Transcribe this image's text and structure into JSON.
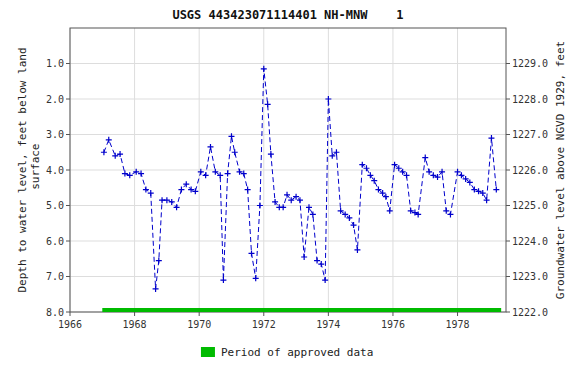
{
  "chart_data": {
    "type": "line",
    "title": "USGS 443423071114401 NH-MNW    1",
    "y_label": "Depth to water level, feet below land\n surface",
    "y2_label": "Groundwater level above NGVD 1929, feet",
    "xlim": [
      1966.0,
      1979.5
    ],
    "xticks": [
      1966,
      1968,
      1970,
      1972,
      1974,
      1976,
      1978
    ],
    "ylim": [
      8.0,
      0.0
    ],
    "yticks": [
      {
        "value": 1.0,
        "label": "1.0"
      },
      {
        "value": 2.0,
        "label": "2.0"
      },
      {
        "value": 3.0,
        "label": "3.0"
      },
      {
        "value": 4.0,
        "label": "4.0"
      },
      {
        "value": 5.0,
        "label": "5.0"
      },
      {
        "value": 6.0,
        "label": "6.0"
      },
      {
        "value": 7.0,
        "label": "7.0"
      },
      {
        "value": 8.0,
        "label": "8.0"
      }
    ],
    "y2lim": [
      1222.0,
      1230.0
    ],
    "y2ticks": [
      {
        "value": 1222.0,
        "label": "1222.0"
      },
      {
        "value": 1223.0,
        "label": "1223.0"
      },
      {
        "value": 1224.0,
        "label": "1224.0"
      },
      {
        "value": 1225.0,
        "label": "1225.0"
      },
      {
        "value": 1226.0,
        "label": "1226.0"
      },
      {
        "value": 1227.0,
        "label": "1227.0"
      },
      {
        "value": 1228.0,
        "label": "1228.0"
      },
      {
        "value": 1229.0,
        "label": "1229.0"
      }
    ],
    "grid": true,
    "legend": "bottom",
    "series": [
      {
        "color": "#0000cc",
        "line_style": "dashed",
        "marker": "plus",
        "x": [
          1967.05,
          1967.2,
          1967.4,
          1967.55,
          1967.7,
          1967.85,
          1968.05,
          1968.2,
          1968.35,
          1968.5,
          1968.65,
          1968.75,
          1968.85,
          1969.0,
          1969.15,
          1969.3,
          1969.45,
          1969.6,
          1969.75,
          1969.88,
          1970.05,
          1970.2,
          1970.35,
          1970.5,
          1970.65,
          1970.75,
          1970.88,
          1971.0,
          1971.1,
          1971.25,
          1971.38,
          1971.5,
          1971.62,
          1971.75,
          1971.88,
          1972.0,
          1972.12,
          1972.22,
          1972.35,
          1972.48,
          1972.6,
          1972.72,
          1972.85,
          1973.0,
          1973.12,
          1973.25,
          1973.4,
          1973.52,
          1973.65,
          1973.78,
          1973.9,
          1974.0,
          1974.12,
          1974.25,
          1974.38,
          1974.52,
          1974.65,
          1974.78,
          1974.9,
          1975.05,
          1975.18,
          1975.3,
          1975.42,
          1975.55,
          1975.68,
          1975.78,
          1975.9,
          1976.05,
          1976.18,
          1976.3,
          1976.42,
          1976.55,
          1976.68,
          1976.78,
          1977.0,
          1977.12,
          1977.25,
          1977.38,
          1977.52,
          1977.65,
          1977.78,
          1978.0,
          1978.12,
          1978.25,
          1978.38,
          1978.52,
          1978.65,
          1978.78,
          1978.9,
          1979.05,
          1979.2
        ],
        "values": [
          3.5,
          3.15,
          3.6,
          3.55,
          4.1,
          4.15,
          4.05,
          4.1,
          4.55,
          4.65,
          7.35,
          6.55,
          4.85,
          4.85,
          4.9,
          5.05,
          4.55,
          4.4,
          4.55,
          4.6,
          4.05,
          4.15,
          3.35,
          4.05,
          4.15,
          7.1,
          4.1,
          3.05,
          3.5,
          4.05,
          4.1,
          4.55,
          6.35,
          7.05,
          5.0,
          1.15,
          2.15,
          3.55,
          4.9,
          5.05,
          5.05,
          4.7,
          4.85,
          4.75,
          4.85,
          6.45,
          5.05,
          5.25,
          6.55,
          6.65,
          7.1,
          2.0,
          3.6,
          3.5,
          5.15,
          5.25,
          5.35,
          5.55,
          6.25,
          3.85,
          3.95,
          4.15,
          4.3,
          4.55,
          4.65,
          4.75,
          5.15,
          3.85,
          3.95,
          4.05,
          4.15,
          5.15,
          5.2,
          5.25,
          3.65,
          4.05,
          4.15,
          4.2,
          4.05,
          5.15,
          5.25,
          4.05,
          4.15,
          4.25,
          4.35,
          4.55,
          4.6,
          4.65,
          4.85,
          3.1,
          4.55
        ]
      },
      {
        "name": "Period of approved data",
        "type": "span",
        "color": "#00bb00",
        "x": [
          1967.0,
          1979.35
        ],
        "values": [
          8.0,
          8.0
        ]
      }
    ]
  }
}
